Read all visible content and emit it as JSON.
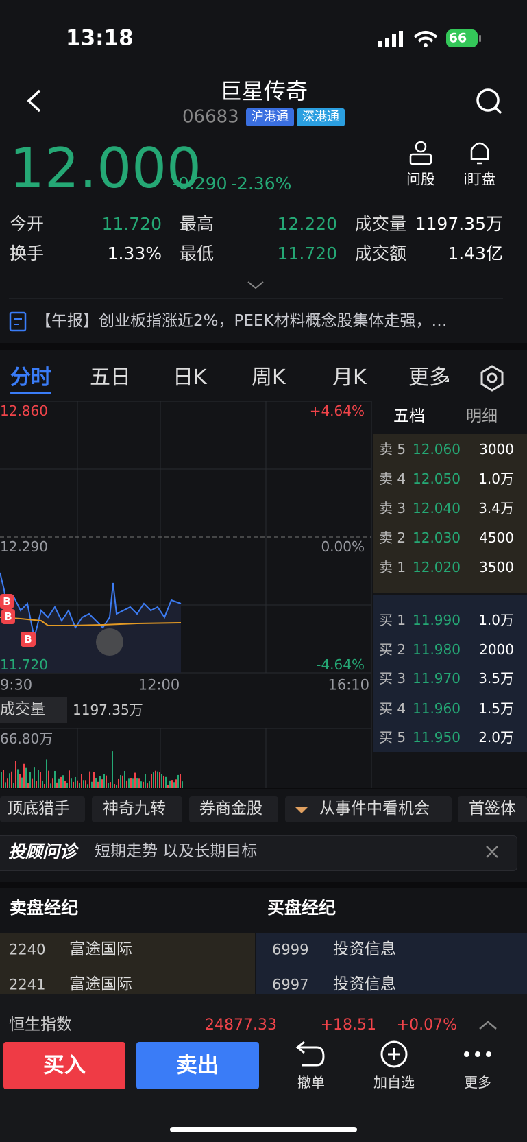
{
  "status": {
    "time": "13:18",
    "battery": "66"
  },
  "header": {
    "title": "巨星传奇",
    "code": "06683",
    "tags": [
      "沪港通",
      "深港通"
    ]
  },
  "quote": {
    "price": "12.000",
    "change": "-0.290",
    "pct": "-2.36%"
  },
  "actions": [
    "问股",
    "i盯盘"
  ],
  "stats": [
    [
      "今开",
      "11.720",
      "最高",
      "12.220",
      "成交量",
      "1197.35万"
    ],
    [
      "换手",
      "1.33%",
      "最低",
      "11.720",
      "成交额",
      "1.43亿"
    ]
  ],
  "news": "【午报】创业板指涨近2%，PEEK材料概念股集体走强，…",
  "tabs": [
    "分时",
    "五日",
    "日K",
    "周K",
    "月K",
    "更多"
  ],
  "chart": {
    "top_left": "12.860",
    "top_right": "+4.64%",
    "mid_left": "12.290",
    "mid_right": "0.00%",
    "bottom_left": "11.720",
    "bottom_right": "-4.64%",
    "times": [
      "9:30",
      "12:00",
      "16:10"
    ],
    "marker": "B",
    "volume_label": "成交量",
    "volume_total": "1197.35万",
    "volume_max": "66.80万"
  },
  "orderbook": {
    "tabs": [
      "五档",
      "明细"
    ],
    "asks": [
      [
        "卖 5",
        "12.060",
        "3000"
      ],
      [
        "卖 4",
        "12.050",
        "1.0万"
      ],
      [
        "卖 3",
        "12.040",
        "3.4万"
      ],
      [
        "卖 2",
        "12.030",
        "4500"
      ],
      [
        "卖 1",
        "12.020",
        "3500"
      ]
    ],
    "bids": [
      [
        "买 1",
        "11.990",
        "1.0万"
      ],
      [
        "买 2",
        "11.980",
        "2000"
      ],
      [
        "买 3",
        "11.970",
        "3.5万"
      ],
      [
        "买 4",
        "11.960",
        "1.5万"
      ],
      [
        "买 5",
        "11.950",
        "2.0万"
      ]
    ]
  },
  "tools": [
    "顶底猎手",
    "神奇九转",
    "券商金股",
    "从事件中看机会",
    "首签体"
  ],
  "advisor": {
    "brand": "投顾问诊",
    "text": "短期走势 以及长期目标"
  },
  "brokers": {
    "sell_title": "卖盘经纪",
    "buy_title": "买盘经纪",
    "sell": [
      [
        "2240",
        "富途国际"
      ],
      [
        "2241",
        "富途国际"
      ]
    ],
    "buy": [
      [
        "6999",
        "投资信息"
      ],
      [
        "6997",
        "投资信息"
      ]
    ]
  },
  "index": {
    "name": "恒生指数",
    "value": "24877.33",
    "change": "+18.51",
    "pct": "+0.07%"
  },
  "bottom": {
    "buy": "买入",
    "sell": "卖出",
    "actions": [
      "撤单",
      "加自选",
      "更多"
    ]
  }
}
